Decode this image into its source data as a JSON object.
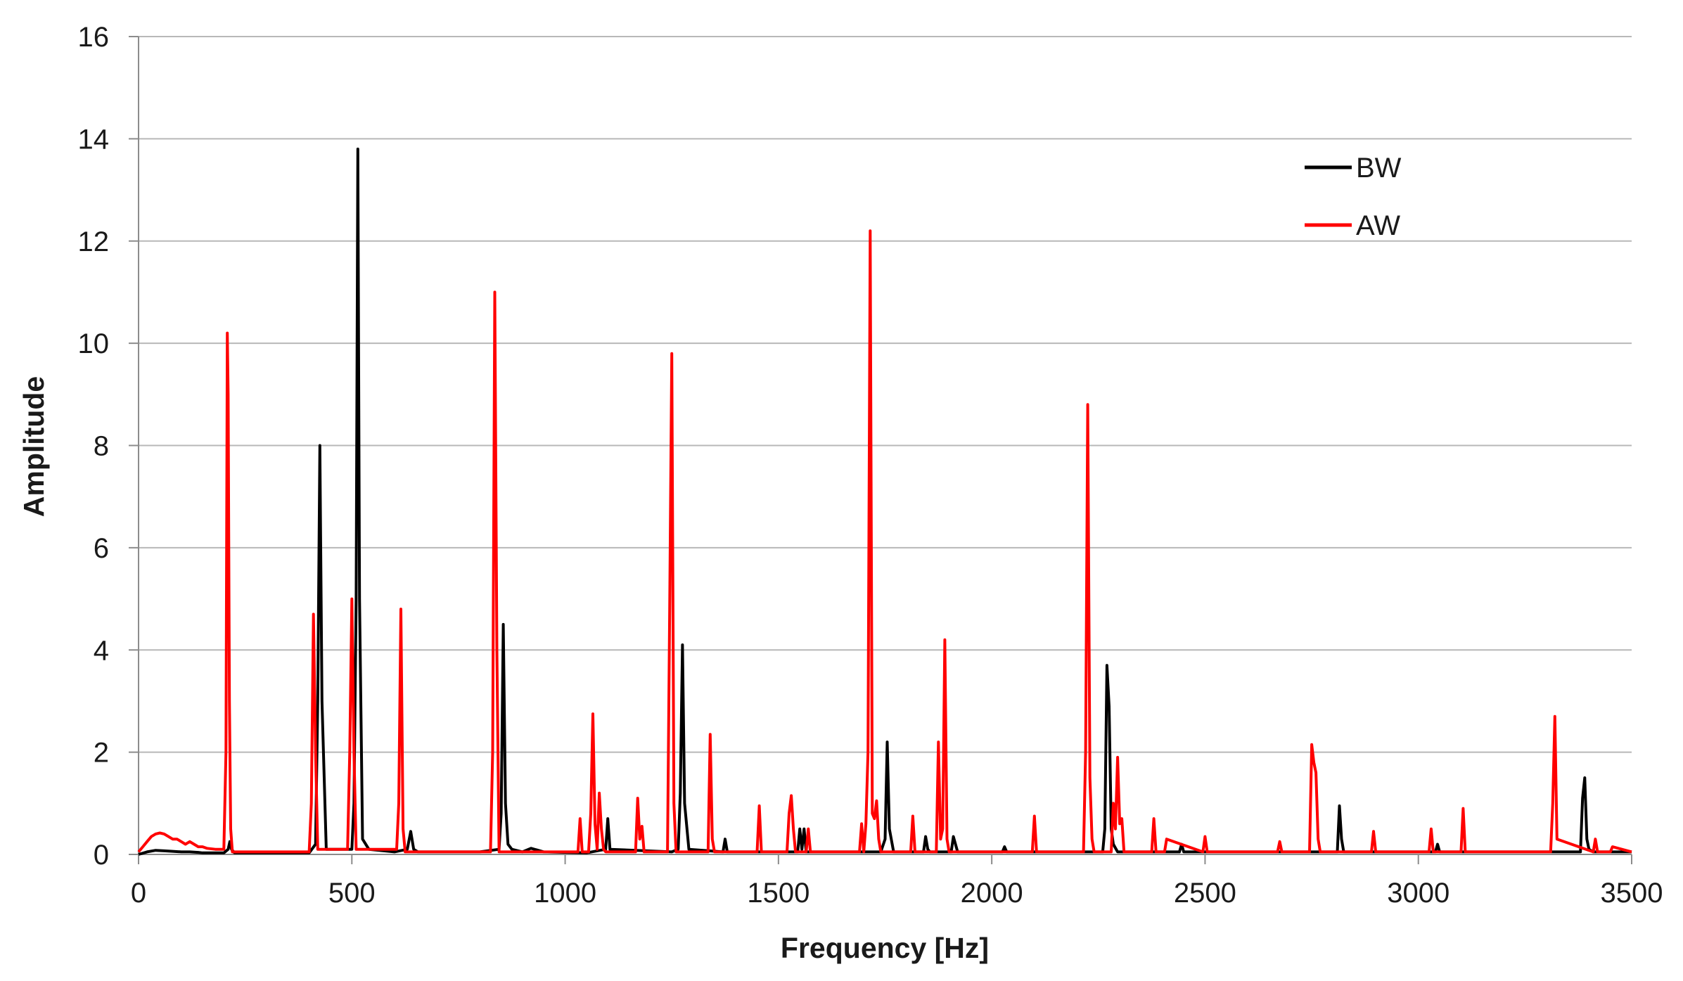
{
  "chart_data": {
    "type": "line",
    "title": "",
    "xlabel": "Frequency [Hz]",
    "ylabel": "Amplitude",
    "xlim": [
      0,
      3500
    ],
    "ylim": [
      0,
      16
    ],
    "x_ticks": [
      "0",
      "500",
      "1000",
      "1500",
      "2000",
      "2500",
      "3000",
      "3500"
    ],
    "y_ticks": [
      "0",
      "2",
      "4",
      "6",
      "8",
      "10",
      "12",
      "14",
      "16"
    ],
    "grid": "horizontal",
    "legend_position": "top-right",
    "series": [
      {
        "name": "BW",
        "color": "#000000",
        "x": [
          0,
          20,
          40,
          60,
          80,
          100,
          120,
          140,
          150,
          200,
          210,
          214,
          218,
          225,
          400,
          415,
          420,
          425,
          430,
          440,
          500,
          505,
          510,
          514,
          518,
          525,
          540,
          600,
          630,
          638,
          645,
          655,
          800,
          845,
          850,
          855,
          860,
          866,
          875,
          900,
          920,
          950,
          1050,
          1095,
          1100,
          1105,
          1250,
          1265,
          1270,
          1275,
          1280,
          1290,
          1370,
          1375,
          1380,
          1545,
          1550,
          1555,
          1560,
          1565,
          1740,
          1750,
          1755,
          1760,
          1770,
          1840,
          1845,
          1850,
          1855,
          1905,
          1910,
          1915,
          1920,
          2025,
          2030,
          2035,
          2260,
          2265,
          2270,
          2275,
          2280,
          2285,
          2295,
          2440,
          2445,
          2450,
          2810,
          2815,
          2820,
          2825,
          3040,
          3045,
          3050,
          3380,
          3385,
          3390,
          3395,
          3400,
          3410,
          3500
        ],
        "y": [
          0,
          0.05,
          0.08,
          0.07,
          0.06,
          0.05,
          0.05,
          0.04,
          0.03,
          0.03,
          0.1,
          0.25,
          0.1,
          0.03,
          0.03,
          0.2,
          3.0,
          8.0,
          3.0,
          0.1,
          0.1,
          1.0,
          5.0,
          13.8,
          5.0,
          0.3,
          0.1,
          0.05,
          0.1,
          0.45,
          0.1,
          0.05,
          0.05,
          0.1,
          0.8,
          4.5,
          1.0,
          0.2,
          0.1,
          0.05,
          0.12,
          0.05,
          0.03,
          0.1,
          0.7,
          0.1,
          0.05,
          0.1,
          1.2,
          4.1,
          1.0,
          0.1,
          0.05,
          0.3,
          0.05,
          0.05,
          0.5,
          0.1,
          0.5,
          0.05,
          0.05,
          0.3,
          2.2,
          0.5,
          0.05,
          0.05,
          0.35,
          0.1,
          0.05,
          0.05,
          0.35,
          0.2,
          0.05,
          0.05,
          0.15,
          0.05,
          0.05,
          0.5,
          3.7,
          2.9,
          0.5,
          0.2,
          0.05,
          0.05,
          0.2,
          0.05,
          0.05,
          0.95,
          0.3,
          0.05,
          0.05,
          0.2,
          0.05,
          0.05,
          1.1,
          1.5,
          0.3,
          0.1,
          0.05,
          0.05
        ]
      },
      {
        "name": "AW",
        "color": "#ff0000",
        "x": [
          0,
          10,
          20,
          30,
          40,
          50,
          60,
          70,
          80,
          90,
          100,
          110,
          120,
          130,
          140,
          150,
          160,
          180,
          200,
          205,
          208,
          210,
          213,
          216,
          220,
          400,
          405,
          410,
          415,
          420,
          490,
          495,
          500,
          505,
          510,
          605,
          610,
          615,
          620,
          625,
          825,
          830,
          835,
          840,
          845,
          1030,
          1035,
          1040,
          1055,
          1060,
          1065,
          1070,
          1075,
          1080,
          1085,
          1090,
          1095,
          1165,
          1170,
          1175,
          1180,
          1185,
          1240,
          1245,
          1250,
          1255,
          1260,
          1335,
          1340,
          1345,
          1350,
          1450,
          1455,
          1460,
          1520,
          1525,
          1530,
          1535,
          1540,
          1565,
          1570,
          1575,
          1690,
          1695,
          1700,
          1705,
          1710,
          1715,
          1720,
          1725,
          1730,
          1735,
          1740,
          1810,
          1815,
          1820,
          1870,
          1875,
          1880,
          1885,
          1890,
          1895,
          1900,
          2095,
          2100,
          2105,
          2215,
          2220,
          2225,
          2230,
          2235,
          2240,
          2280,
          2285,
          2290,
          2295,
          2300,
          2305,
          2310,
          2375,
          2380,
          2385,
          2405,
          2410,
          2495,
          2500,
          2505,
          2670,
          2675,
          2680,
          2745,
          2750,
          2755,
          2760,
          2765,
          2770,
          2890,
          2895,
          2900,
          3025,
          3030,
          3035,
          3100,
          3105,
          3110,
          3310,
          3315,
          3320,
          3325,
          3410,
          3415,
          3420,
          3450,
          3455,
          3500
        ],
        "y": [
          0.05,
          0.15,
          0.25,
          0.35,
          0.4,
          0.42,
          0.4,
          0.35,
          0.3,
          0.3,
          0.25,
          0.2,
          0.25,
          0.2,
          0.15,
          0.15,
          0.12,
          0.1,
          0.1,
          2.0,
          10.2,
          9.0,
          3.0,
          0.5,
          0.05,
          0.05,
          1.0,
          4.7,
          2.0,
          0.1,
          0.1,
          2.0,
          5.0,
          2.0,
          0.1,
          0.1,
          1.0,
          4.8,
          0.5,
          0.05,
          0.05,
          2.0,
          11.0,
          4.0,
          0.05,
          0.05,
          0.7,
          0.05,
          0.05,
          0.8,
          2.75,
          0.6,
          0.1,
          1.2,
          0.5,
          0.1,
          0.05,
          0.05,
          1.1,
          0.3,
          0.55,
          0.05,
          0.05,
          4.8,
          9.8,
          1.0,
          0.05,
          0.05,
          2.35,
          0.3,
          0.05,
          0.05,
          0.95,
          0.05,
          0.05,
          0.8,
          1.15,
          0.5,
          0.05,
          0.05,
          0.5,
          0.05,
          0.05,
          0.6,
          0.05,
          0.6,
          2.0,
          12.2,
          0.8,
          0.7,
          1.05,
          0.3,
          0.05,
          0.05,
          0.75,
          0.05,
          0.05,
          2.2,
          0.3,
          0.5,
          4.2,
          0.3,
          0.05,
          0.05,
          0.75,
          0.05,
          0.05,
          2.0,
          8.8,
          1.5,
          0.3,
          0.05,
          0.05,
          1.0,
          0.5,
          1.9,
          0.6,
          0.7,
          0.05,
          0.05,
          0.7,
          0.05,
          0.05,
          0.3,
          0.05,
          0.35,
          0.05,
          0.05,
          0.25,
          0.05,
          0.05,
          2.15,
          1.8,
          1.6,
          0.3,
          0.05,
          0.05,
          0.45,
          0.05,
          0.05,
          0.5,
          0.05,
          0.05,
          0.9,
          0.05,
          0.05,
          1.0,
          2.7,
          0.3,
          0.05,
          0.3,
          0.05,
          0.05,
          0.15,
          0.05
        ]
      }
    ]
  }
}
